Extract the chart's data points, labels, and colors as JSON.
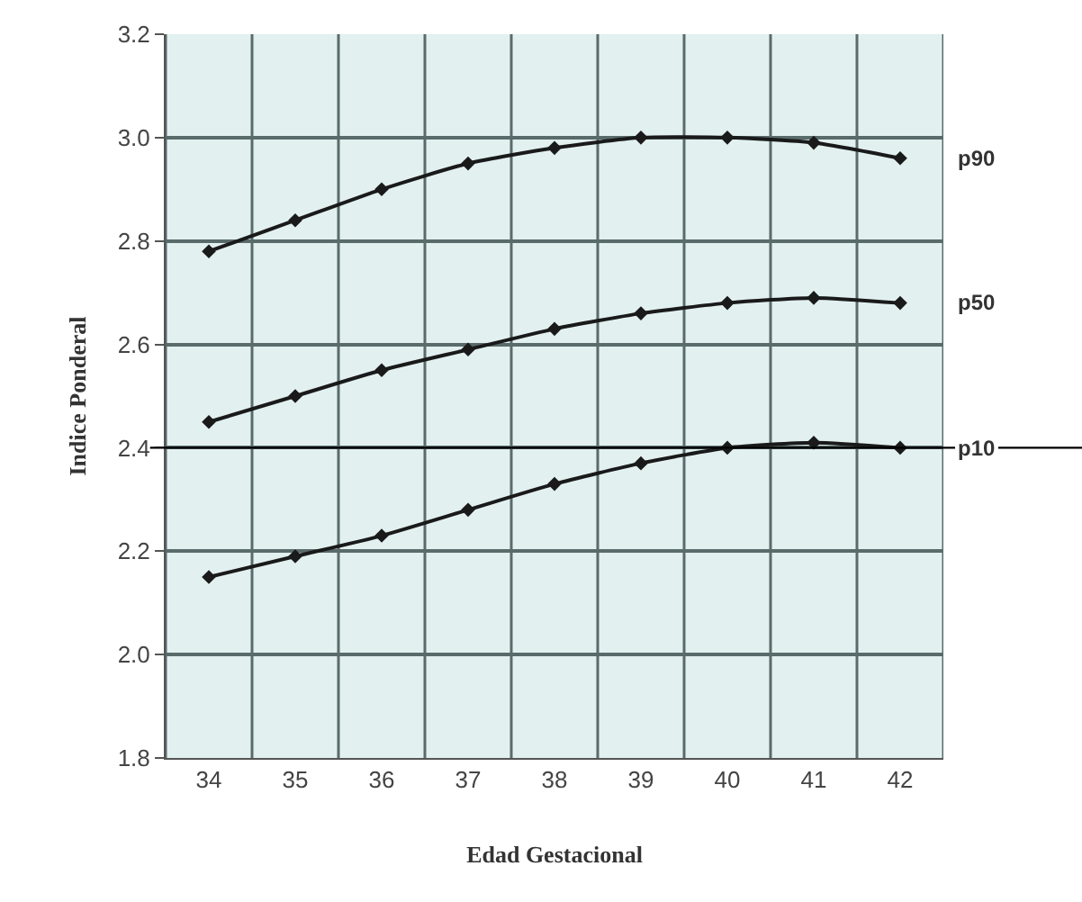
{
  "chart_data": {
    "type": "line",
    "xlabel": "Edad Gestacional",
    "ylabel": "Indice Ponderal",
    "categories": [
      "34",
      "35",
      "36",
      "37",
      "38",
      "39",
      "40",
      "41",
      "42"
    ],
    "series": [
      {
        "name": "p90",
        "color": "#1a1a1a",
        "values": [
          2.78,
          2.84,
          2.9,
          2.95,
          2.98,
          3.0,
          3.0,
          2.99,
          2.96
        ]
      },
      {
        "name": "p50",
        "color": "#1a1a1a",
        "values": [
          2.45,
          2.5,
          2.55,
          2.59,
          2.63,
          2.66,
          2.68,
          2.69,
          2.68
        ]
      },
      {
        "name": "p10",
        "color": "#1a1a1a",
        "values": [
          2.15,
          2.19,
          2.23,
          2.28,
          2.33,
          2.37,
          2.4,
          2.41,
          2.4
        ]
      }
    ],
    "ylim": [
      1.8,
      3.2
    ],
    "yticks": [
      1.8,
      {
        "value": 2,
        "label": "2.0"
      },
      2.2,
      2.4,
      2.6,
      2.8,
      {
        "value": 3,
        "label": "3.0"
      },
      3.2
    ],
    "ref_lines": [
      {
        "axis": "y",
        "value": 2.4,
        "color": "#000000"
      }
    ],
    "grid": true,
    "legend": false,
    "marker": "diamond",
    "line_style": "solid"
  }
}
